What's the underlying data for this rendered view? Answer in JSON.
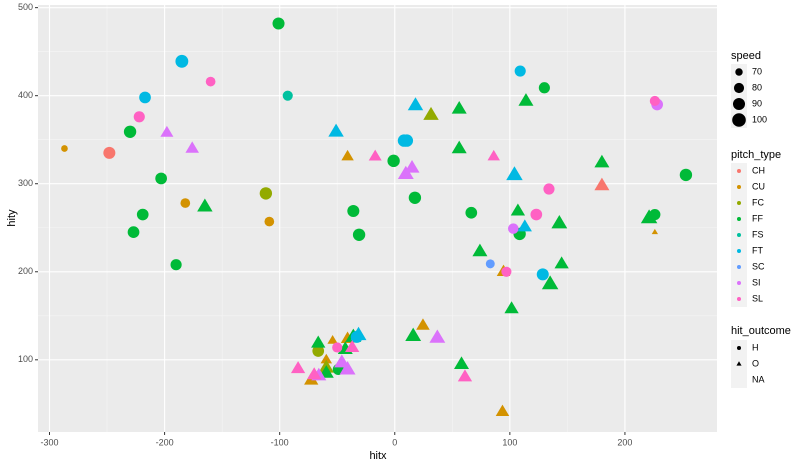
{
  "chart_data": {
    "type": "scatter",
    "x_label": "hitx",
    "y_label": "hity",
    "xlim": [
      -310,
      280
    ],
    "xticks": [
      -300,
      -200,
      -100,
      0,
      100,
      200
    ],
    "ylim": [
      18,
      503
    ],
    "yticks": [
      100,
      200,
      300,
      400,
      500
    ],
    "grid": true,
    "size_title": "speed",
    "size_ticks": [
      70,
      80,
      90,
      100
    ],
    "color_title": "pitch_type",
    "shape_title": "hit_outcome",
    "shapes": [
      "H",
      "O",
      "NA"
    ],
    "series": [
      {
        "name": "CH",
        "color": "#F8766D",
        "x": [
          -248,
          180
        ],
        "y": [
          335,
          298
        ],
        "speed": [
          90,
          88
        ],
        "outcome": [
          "H",
          "O"
        ]
      },
      {
        "name": "CU",
        "color": "#D39200",
        "x": [
          -287,
          -182,
          -109,
          -41,
          226,
          94.5,
          93.6,
          24.5,
          -72.6,
          -59.5,
          -54,
          -41
        ],
        "y": [
          340,
          278,
          257,
          331,
          245,
          200,
          41,
          139,
          77,
          100,
          122,
          124
        ],
        "speed": [
          68,
          78,
          78,
          78,
          65,
          82,
          82,
          82,
          85,
          75,
          72,
          82
        ],
        "outcome": [
          "H",
          "H",
          "H",
          "O",
          "O",
          "O",
          "O",
          "O",
          "O",
          "O",
          "O",
          "O"
        ]
      },
      {
        "name": "FC",
        "color": "#93AA00",
        "x": [
          -112,
          -66.5,
          31.5,
          -59.5
        ],
        "y": [
          289,
          110,
          378,
          91
        ],
        "speed": [
          92,
          88,
          90,
          90
        ],
        "outcome": [
          "H",
          "H",
          "O",
          "O"
        ]
      },
      {
        "name": "FF",
        "color": "#00BA38",
        "x": [
          -101,
          -230,
          -203,
          -219,
          -227,
          -190,
          -36,
          -31,
          -1,
          17.5,
          66.5,
          130,
          108.5,
          226,
          253,
          -49,
          -165,
          56,
          56,
          114,
          107,
          143,
          74,
          145,
          135,
          180,
          221,
          101.5,
          58,
          16,
          -66.5,
          -59.5,
          -43,
          -36
        ],
        "y": [
          482,
          359,
          306,
          265,
          245,
          208,
          269,
          242,
          326,
          284,
          267,
          409,
          243,
          265,
          310,
          89,
          274,
          385,
          340,
          394,
          269,
          255,
          223,
          209,
          186,
          324,
          261,
          158,
          95,
          127,
          119,
          85,
          112,
          126
        ],
        "speed": [
          90,
          92,
          88,
          88,
          88,
          85,
          90,
          92,
          92,
          92,
          88,
          85,
          92,
          85,
          92,
          85,
          90,
          88,
          88,
          88,
          85,
          92,
          88,
          85,
          95,
          88,
          95,
          85,
          88,
          92,
          85,
          88,
          88,
          92
        ],
        "outcome": [
          "H",
          "H",
          "H",
          "H",
          "H",
          "H",
          "H",
          "H",
          "H",
          "H",
          "H",
          "H",
          "H",
          "H",
          "H",
          "H",
          "O",
          "O",
          "O",
          "O",
          "O",
          "O",
          "O",
          "O",
          "O",
          "O",
          "O",
          "O",
          "O",
          "O",
          "O",
          "O",
          "O",
          "O"
        ]
      },
      {
        "name": "FS",
        "color": "#00C19F",
        "x": [
          -93
        ],
        "y": [
          400
        ],
        "speed": [
          80
        ],
        "outcome": [
          "H"
        ]
      },
      {
        "name": "FT",
        "color": "#00B9E3",
        "x": [
          -185,
          -217,
          8,
          10.5,
          109,
          128.6,
          -33,
          -51,
          18,
          104,
          113,
          -31.5
        ],
        "y": [
          439,
          398,
          349,
          349,
          428,
          197,
          126,
          359,
          389,
          310,
          251,
          128
        ],
        "speed": [
          95,
          88,
          92,
          92,
          85,
          90,
          90,
          90,
          90,
          95,
          85,
          92
        ],
        "outcome": [
          "H",
          "H",
          "H",
          "H",
          "H",
          "H",
          "H",
          "O",
          "O",
          "O",
          "O",
          "O"
        ]
      },
      {
        "name": "SC",
        "color": "#619CFF",
        "x": [
          83
        ],
        "y": [
          209
        ],
        "speed": [
          75
        ],
        "outcome": [
          "H"
        ]
      },
      {
        "name": "SI",
        "color": "#DB72FB",
        "x": [
          103,
          228,
          -198,
          -176,
          9.6,
          15,
          37,
          -66,
          -46,
          -41
        ],
        "y": [
          249,
          390,
          358,
          340,
          311,
          318,
          125,
          82,
          97,
          89
        ],
        "speed": [
          82,
          88,
          80,
          82,
          92,
          88,
          92,
          88,
          90,
          92
        ],
        "outcome": [
          "H",
          "H",
          "O",
          "O",
          "O",
          "O",
          "O",
          "O",
          "O",
          "O"
        ]
      },
      {
        "name": "SL",
        "color": "#FF61C3",
        "x": [
          -160,
          -222,
          134,
          123,
          97,
          226,
          -50,
          -17,
          86,
          61,
          -84,
          -70,
          -37
        ],
        "y": [
          416,
          376,
          294,
          265,
          200,
          394,
          114,
          331,
          331,
          80.6,
          90,
          83,
          114
        ],
        "speed": [
          78,
          85,
          85,
          88,
          80,
          80,
          80,
          80,
          78,
          85,
          85,
          85,
          85
        ],
        "outcome": [
          "H",
          "H",
          "H",
          "H",
          "H",
          "H",
          "H",
          "O",
          "O",
          "O",
          "O",
          "O",
          "O"
        ]
      }
    ]
  }
}
